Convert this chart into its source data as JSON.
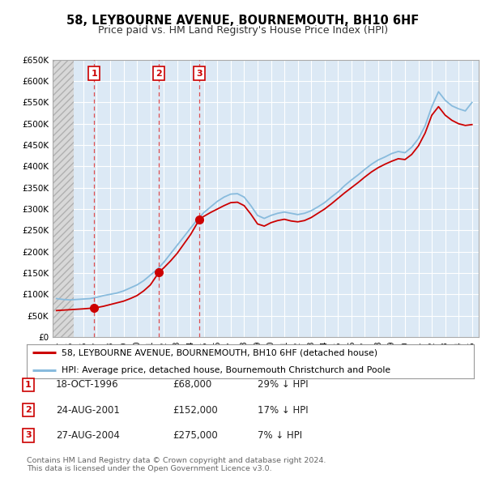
{
  "title": "58, LEYBOURNE AVENUE, BOURNEMOUTH, BH10 6HF",
  "subtitle": "Price paid vs. HM Land Registry's House Price Index (HPI)",
  "xlim": [
    1993.7,
    2025.5
  ],
  "ylim": [
    0,
    650000
  ],
  "yticks": [
    0,
    50000,
    100000,
    150000,
    200000,
    250000,
    300000,
    350000,
    400000,
    450000,
    500000,
    550000,
    600000,
    650000
  ],
  "ytick_labels": [
    "£0",
    "£50K",
    "£100K",
    "£150K",
    "£200K",
    "£250K",
    "£300K",
    "£350K",
    "£400K",
    "£450K",
    "£500K",
    "£550K",
    "£600K",
    "£650K"
  ],
  "xticks": [
    1994,
    1995,
    1996,
    1997,
    1998,
    1999,
    2000,
    2001,
    2002,
    2003,
    2004,
    2005,
    2006,
    2007,
    2008,
    2009,
    2010,
    2011,
    2012,
    2013,
    2014,
    2015,
    2016,
    2017,
    2018,
    2019,
    2020,
    2021,
    2022,
    2023,
    2024,
    2025
  ],
  "transactions": [
    {
      "year": 1996.8,
      "price": 68000,
      "label": "1",
      "date": "18-OCT-1996",
      "price_str": "£68,000",
      "hpi_note": "29% ↓ HPI"
    },
    {
      "year": 2001.65,
      "price": 152000,
      "label": "2",
      "date": "24-AUG-2001",
      "price_str": "£152,000",
      "hpi_note": "17% ↓ HPI"
    },
    {
      "year": 2004.65,
      "price": 275000,
      "label": "3",
      "date": "27-AUG-2004",
      "price_str": "£275,000",
      "hpi_note": "7% ↓ HPI"
    }
  ],
  "hatch_end_year": 1995.3,
  "legend_entries": [
    {
      "label": "58, LEYBOURNE AVENUE, BOURNEMOUTH, BH10 6HF (detached house)",
      "color": "#cc0000",
      "lw": 1.5
    },
    {
      "label": "HPI: Average price, detached house, Bournemouth Christchurch and Poole",
      "color": "#88bbdd",
      "lw": 1.5
    }
  ],
  "footer_text": "Contains HM Land Registry data © Crown copyright and database right 2024.\nThis data is licensed under the Open Government Licence v3.0.",
  "background_color": "#ffffff",
  "plot_bg_color": "#dce9f5",
  "grid_color": "#ffffff",
  "red_line_color": "#cc0000",
  "blue_line_color": "#88bbdd",
  "marker_color": "#cc0000",
  "dashed_line_color": "#dd3333",
  "hpi_years": [
    1994.0,
    1994.5,
    1995.0,
    1995.5,
    1996.0,
    1996.5,
    1997.0,
    1997.5,
    1998.0,
    1998.5,
    1999.0,
    1999.5,
    2000.0,
    2000.5,
    2001.0,
    2001.5,
    2002.0,
    2002.5,
    2003.0,
    2003.5,
    2004.0,
    2004.5,
    2005.0,
    2005.5,
    2006.0,
    2006.5,
    2007.0,
    2007.5,
    2008.0,
    2008.5,
    2009.0,
    2009.5,
    2010.0,
    2010.5,
    2011.0,
    2011.5,
    2012.0,
    2012.5,
    2013.0,
    2013.5,
    2014.0,
    2014.5,
    2015.0,
    2015.5,
    2016.0,
    2016.5,
    2017.0,
    2017.5,
    2018.0,
    2018.5,
    2019.0,
    2019.5,
    2020.0,
    2020.5,
    2021.0,
    2021.5,
    2022.0,
    2022.5,
    2023.0,
    2023.5,
    2024.0,
    2024.5,
    2025.0
  ],
  "hpi_prices": [
    90000,
    88000,
    87000,
    88000,
    89000,
    90000,
    93000,
    97000,
    100000,
    103000,
    108000,
    115000,
    122000,
    132000,
    145000,
    158000,
    175000,
    195000,
    215000,
    235000,
    255000,
    275000,
    292000,
    305000,
    318000,
    328000,
    335000,
    336000,
    328000,
    308000,
    285000,
    278000,
    285000,
    290000,
    293000,
    290000,
    287000,
    290000,
    296000,
    305000,
    315000,
    328000,
    340000,
    355000,
    368000,
    380000,
    393000,
    405000,
    415000,
    422000,
    430000,
    435000,
    432000,
    445000,
    465000,
    495000,
    540000,
    575000,
    555000,
    542000,
    535000,
    530000,
    550000
  ],
  "red_years": [
    1994.0,
    1994.5,
    1995.0,
    1995.5,
    1996.0,
    1996.8,
    1997.0,
    1997.5,
    1998.0,
    1998.5,
    1999.0,
    1999.5,
    2000.0,
    2000.5,
    2001.0,
    2001.65,
    2002.0,
    2002.5,
    2003.0,
    2003.5,
    2004.0,
    2004.65,
    2005.0,
    2005.5,
    2006.0,
    2006.5,
    2007.0,
    2007.5,
    2008.0,
    2008.5,
    2009.0,
    2009.5,
    2010.0,
    2010.5,
    2011.0,
    2011.5,
    2012.0,
    2012.5,
    2013.0,
    2013.5,
    2014.0,
    2014.5,
    2015.0,
    2015.5,
    2016.0,
    2016.5,
    2017.0,
    2017.5,
    2018.0,
    2018.5,
    2019.0,
    2019.5,
    2020.0,
    2020.5,
    2021.0,
    2021.5,
    2022.0,
    2022.5,
    2023.0,
    2023.5,
    2024.0,
    2024.5,
    2025.0
  ],
  "red_prices": [
    62000,
    63000,
    64000,
    65000,
    66000,
    68000,
    69000,
    72000,
    76000,
    80000,
    84000,
    90000,
    97000,
    108000,
    122000,
    152000,
    162000,
    178000,
    196000,
    218000,
    240000,
    275000,
    283000,
    292000,
    300000,
    308000,
    315000,
    316000,
    308000,
    288000,
    265000,
    260000,
    268000,
    273000,
    276000,
    272000,
    270000,
    273000,
    280000,
    290000,
    300000,
    312000,
    325000,
    338000,
    350000,
    362000,
    375000,
    387000,
    397000,
    405000,
    412000,
    418000,
    416000,
    428000,
    448000,
    478000,
    520000,
    540000,
    520000,
    508000,
    500000,
    496000,
    498000
  ]
}
